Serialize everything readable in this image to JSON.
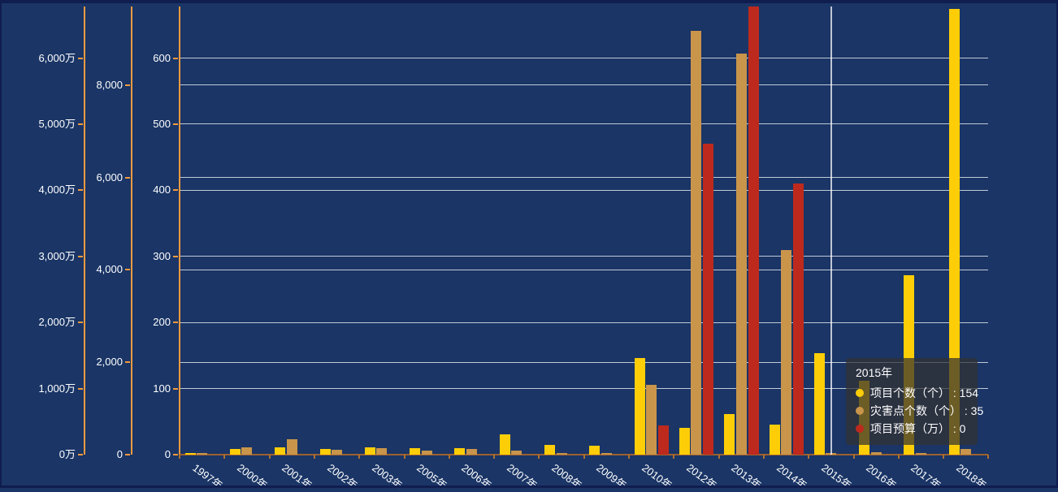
{
  "chart_data": {
    "type": "bar",
    "title": "",
    "categories": [
      "1997年",
      "2000年",
      "2001年",
      "2002年",
      "2003年",
      "2005年",
      "2006年",
      "2007年",
      "2008年",
      "2009年",
      "2010年",
      "2012年",
      "2013年",
      "2014年",
      "2015年",
      "2016年",
      "2017年",
      "2018年"
    ],
    "series": [
      {
        "name": "项目个数（个）",
        "color": "#fdce07",
        "axis": "count",
        "values": [
          2,
          8,
          11,
          9,
          11,
          10,
          10,
          31,
          15,
          13,
          146,
          41,
          61,
          45,
          154,
          112,
          272,
          674
        ]
      },
      {
        "name": "灾害点个数（个）",
        "color": "#c9954b",
        "axis": "points",
        "values": [
          40,
          165,
          330,
          100,
          140,
          90,
          120,
          90,
          35,
          35,
          1510,
          9180,
          8680,
          4420,
          35,
          50,
          30,
          120
        ]
      },
      {
        "name": "项目预算（万）",
        "color": "#bd2a1d",
        "axis": "budget",
        "values": [
          0,
          0,
          0,
          0,
          0,
          0,
          0,
          0,
          0,
          0,
          440,
          4700,
          6830,
          4100,
          0,
          0,
          0,
          0
        ]
      }
    ],
    "y_axes": [
      {
        "id": "budget",
        "position_x": 104,
        "max": 6780,
        "grid": false,
        "tick_values": [
          0,
          1000,
          2000,
          3000,
          4000,
          5000,
          6000
        ],
        "tick_labels": [
          "0万",
          "1,000万",
          "2,000万",
          "3,000万",
          "4,000万",
          "5,000万",
          "6,000万"
        ]
      },
      {
        "id": "points",
        "position_x": 162,
        "max": 9700,
        "grid": true,
        "tick_values": [
          0,
          2000,
          4000,
          6000,
          8000
        ],
        "tick_labels": [
          "0",
          "2,000",
          "4,000",
          "6,000",
          "8,000"
        ]
      },
      {
        "id": "count",
        "position_x": 221,
        "max": 678,
        "grid": true,
        "tick_values": [
          0,
          100,
          200,
          300,
          400,
          500,
          600
        ],
        "tick_labels": [
          "0",
          "100",
          "200",
          "300",
          "400",
          "500",
          "600"
        ]
      }
    ],
    "legend_position": "none",
    "grid": true
  },
  "pointer": {
    "category": "2015年"
  },
  "tooltip": {
    "title": "2015年",
    "separator": " : ",
    "rows": [
      {
        "label": "项目个数（个）",
        "value": "154"
      },
      {
        "label": "灾害点个数（个）",
        "value": "35"
      },
      {
        "label": "项目预算（万）",
        "value": "0"
      }
    ]
  },
  "colors": {
    "background": "#1a3566",
    "frame": "#101d4f",
    "grid_line": "rgba(223,228,234,0.85)",
    "y_axis_line": "#f09a40",
    "x_axis_line": "#9c6130",
    "x_axis_tick": "#b0702e",
    "pointer_line": "rgba(255,255,255,0.72)",
    "text": "#ffffff",
    "tooltip_bg": "rgba(50,50,50,0.72)"
  }
}
